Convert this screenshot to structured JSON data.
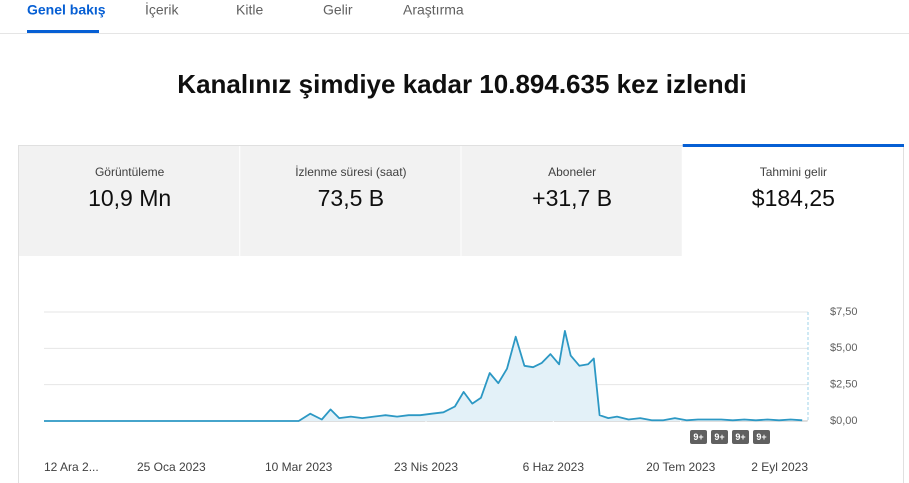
{
  "tabs": [
    "Genel bakış",
    "İçerik",
    "Kitle",
    "Gelir",
    "Araştırma"
  ],
  "headline": "Kanalınız şimdiye kadar 10.894.635 kez izlendi",
  "metrics": [
    {
      "label": "Görüntüleme",
      "value": "10,9 Mn"
    },
    {
      "label": "İzlenme süresi (saat)",
      "value": "73,5 B"
    },
    {
      "label": "Aboneler",
      "value": "+31,7 B"
    },
    {
      "label": "Tahmini gelir",
      "value": "$184,25"
    }
  ],
  "chart": {
    "type": "line",
    "color": "#2c98c4",
    "x": [
      0,
      4,
      8,
      12,
      16,
      20,
      24,
      28,
      32,
      36,
      40,
      44,
      48,
      52,
      56,
      60,
      64,
      68,
      72,
      76,
      80,
      84,
      88,
      92,
      96,
      99,
      102,
      106,
      110,
      114,
      118,
      122,
      126,
      130,
      134,
      138,
      142,
      145,
      148,
      151,
      154,
      157,
      160,
      163,
      166,
      169,
      172,
      175,
      178,
      180,
      182,
      185,
      188,
      190,
      192,
      195,
      198,
      202,
      206,
      210,
      214,
      218,
      222,
      226,
      230,
      234,
      238,
      242,
      246,
      250,
      254,
      258,
      262
    ],
    "values": [
      0,
      0,
      0,
      0,
      0,
      0,
      0,
      0,
      0,
      0,
      0,
      0,
      0,
      0,
      0,
      0,
      0,
      0,
      0,
      0,
      0,
      0,
      0,
      0.5,
      0.1,
      0.8,
      0.2,
      0.3,
      0.2,
      0.3,
      0.4,
      0.3,
      0.4,
      0.4,
      0.5,
      0.6,
      1.0,
      2.0,
      1.2,
      1.6,
      3.3,
      2.6,
      3.6,
      5.8,
      3.8,
      3.7,
      4.0,
      4.6,
      3.9,
      6.2,
      4.5,
      3.8,
      3.9,
      4.3,
      0.4,
      0.2,
      0.3,
      0.1,
      0.2,
      0.05,
      0.05,
      0.2,
      0.05,
      0.1,
      0.1,
      0.1,
      0.05,
      0.1,
      0.05,
      0.1,
      0.05,
      0.1,
      0.05
    ],
    "xlim": [
      0,
      264
    ],
    "xticks": [
      {
        "value": 0,
        "label": "12 Ara 2..."
      },
      {
        "value": 44,
        "label": "25 Oca 2023"
      },
      {
        "value": 88,
        "label": "10 Mar 2023"
      },
      {
        "value": 132,
        "label": "23 Nis 2023"
      },
      {
        "value": 176,
        "label": "6 Haz 2023"
      },
      {
        "value": 220,
        "label": "20 Tem 2023"
      },
      {
        "value": 264,
        "label": "2 Eyl 2023"
      }
    ],
    "ylim": [
      0,
      7.5
    ],
    "yticks": [
      {
        "value": 0,
        "label": "$0,00"
      },
      {
        "value": 2.5,
        "label": "$2,50"
      },
      {
        "value": 5,
        "label": "$5,00"
      },
      {
        "value": 7.5,
        "label": "$7,50"
      }
    ],
    "grid": true
  },
  "badges": [
    "9+",
    "9+",
    "9+",
    "9+"
  ]
}
